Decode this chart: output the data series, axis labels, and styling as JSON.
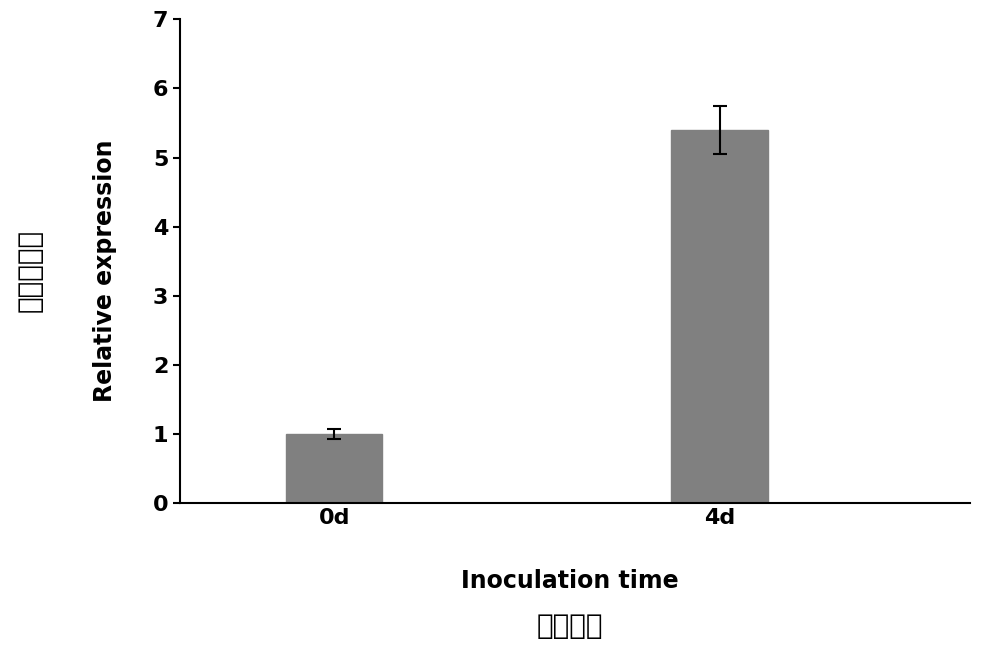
{
  "categories": [
    "0d",
    "4d"
  ],
  "values": [
    1.0,
    5.4
  ],
  "errors": [
    0.07,
    0.35
  ],
  "bar_color": "#808080",
  "bar_width": 0.5,
  "bar_positions": [
    1,
    3
  ],
  "ylim": [
    0,
    7
  ],
  "yticks": [
    0,
    1,
    2,
    3,
    4,
    5,
    6,
    7
  ],
  "xlabel_english": "Inoculation time",
  "xlabel_chinese": "接种天数",
  "ylabel_english": "Relative expression",
  "ylabel_chinese": "相对表达量",
  "xlabel_fontsize": 17,
  "ylabel_fontsize": 17,
  "tick_fontsize": 16,
  "chinese_fontsize": 20,
  "figsize": [
    10.0,
    6.45
  ],
  "dpi": 100,
  "background_color": "#ffffff",
  "xtick_positions": [
    1,
    3
  ],
  "error_capsize": 5,
  "error_color": "#000000",
  "error_linewidth": 1.5,
  "xlim": [
    0.2,
    4.3
  ]
}
